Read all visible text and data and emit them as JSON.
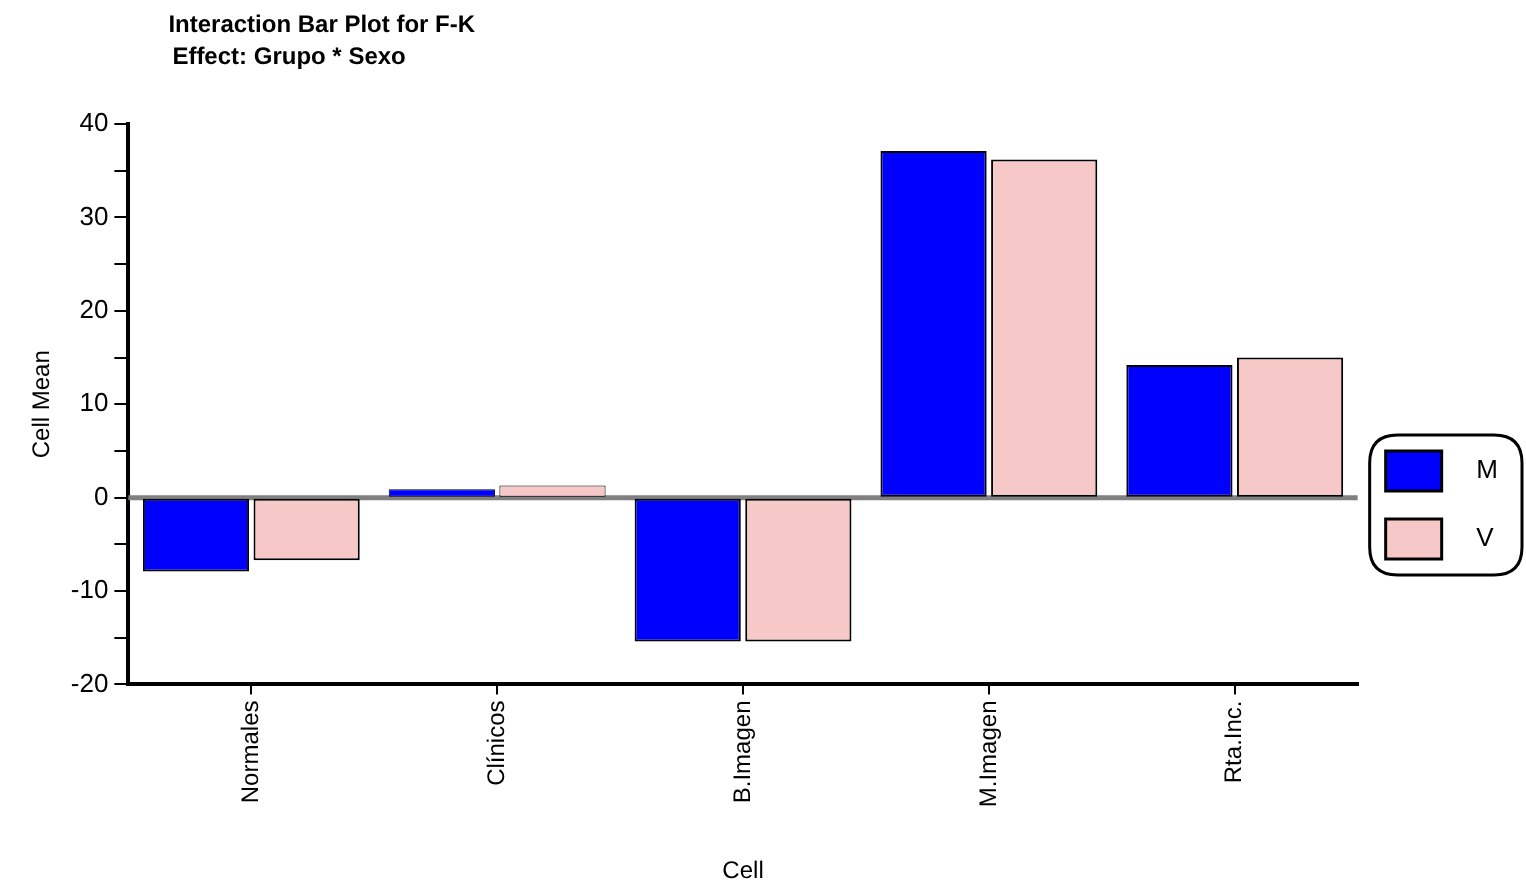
{
  "chart_data": {
    "type": "bar",
    "title": "Interaction Bar Plot for F-K",
    "subtitle": "Effect: Grupo * Sexo",
    "xlabel": "Cell",
    "ylabel": "Cell Mean",
    "categories": [
      "Normales",
      "Clínicos",
      "B.Imagen",
      "M.Imagen",
      "Rta.Inc."
    ],
    "series": [
      {
        "name": "M",
        "color": "#0000ff",
        "values": [
          -7.9,
          0.9,
          -15.4,
          37.1,
          14.2
        ]
      },
      {
        "name": "V",
        "color": "#f6c8c8",
        "values": [
          -6.7,
          1.3,
          -15.4,
          36.2,
          15.0
        ]
      }
    ],
    "ylim": [
      -20,
      40
    ],
    "yticks": [
      -20,
      {
        "value": -15,
        "label": null
      },
      -10,
      {
        "value": -5,
        "label": null
      },
      0,
      {
        "value": 5,
        "label": null
      },
      10,
      {
        "value": 15,
        "label": null
      },
      20,
      {
        "value": 25,
        "label": null
      },
      30,
      {
        "value": 35,
        "label": null
      },
      40
    ],
    "ref_lines": [
      {
        "axis": "y",
        "value": 0,
        "color": "#808080"
      }
    ],
    "grid": false,
    "legend": "right"
  }
}
